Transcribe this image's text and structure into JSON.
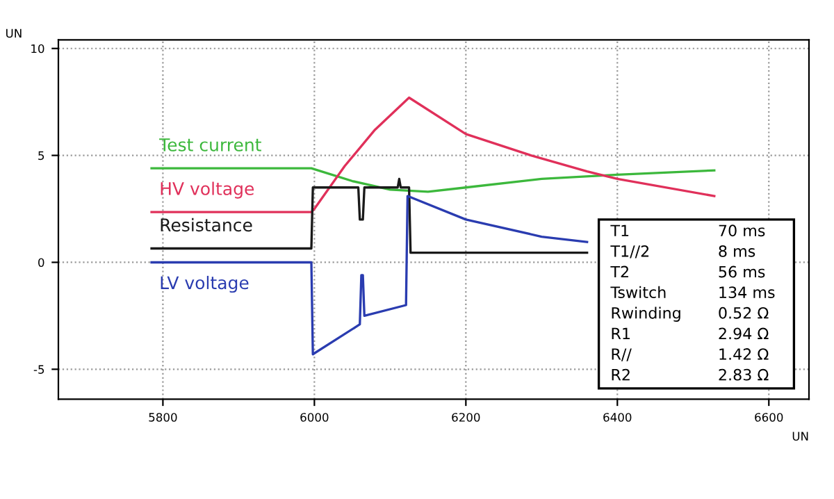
{
  "chart_data": {
    "type": "line",
    "xlabel": "UN",
    "ylabel": "UN",
    "xlim": [
      5662,
      6653
    ],
    "ylim": [
      -6.4,
      10.4
    ],
    "xticks": [
      5800,
      6000,
      6200,
      6400,
      6600
    ],
    "yticks": [
      10,
      5,
      0,
      -5
    ],
    "grid": true,
    "legend": false,
    "marker": "none",
    "line_style": "solid",
    "series": [
      {
        "name": "Test current",
        "color": "#3cb83c",
        "x": [
          5785,
          5996,
          6050,
          6100,
          6150,
          6200,
          6300,
          6400,
          6528
        ],
        "values": [
          4.4,
          4.4,
          3.8,
          3.4,
          3.3,
          3.5,
          3.9,
          4.1,
          4.3
        ]
      },
      {
        "name": "HV voltage",
        "color": "#e0305a",
        "x": [
          5785,
          5996,
          6000,
          6040,
          6080,
          6125,
          6200,
          6286,
          6360,
          6400,
          6528
        ],
        "values": [
          2.35,
          2.35,
          2.5,
          4.5,
          6.2,
          7.7,
          6.0,
          5.0,
          4.25,
          3.9,
          3.1
        ]
      },
      {
        "name": "Resistance",
        "color": "#1a1a1a",
        "x": [
          5785,
          5996,
          5998,
          6058,
          6060,
          6064,
          6066,
          6110,
          6112,
          6114,
          6125,
          6127,
          6360
        ],
        "values": [
          0.65,
          0.65,
          3.5,
          3.5,
          2.0,
          2.0,
          3.5,
          3.5,
          3.9,
          3.5,
          3.5,
          0.45,
          0.45
        ]
      },
      {
        "name": "LV voltage",
        "color": "#2a3cb0",
        "x": [
          5785,
          5996,
          5998,
          6060,
          6062,
          6064,
          6066,
          6121,
          6123,
          6200,
          6300,
          6360
        ],
        "values": [
          0,
          0,
          -4.3,
          -2.9,
          -0.6,
          -0.6,
          -2.5,
          -2.0,
          3.1,
          2.0,
          1.2,
          0.95
        ]
      }
    ],
    "annotations": [
      "T1",
      "70 ms",
      "T1//2",
      "8 ms",
      "T2",
      "56 ms",
      "Tswitch",
      "134 ms",
      "Rwinding",
      "0.52 Ω",
      "R1",
      "2.94 Ω",
      "R//",
      "1.42 Ω",
      "R2",
      "2.83 Ω"
    ]
  }
}
